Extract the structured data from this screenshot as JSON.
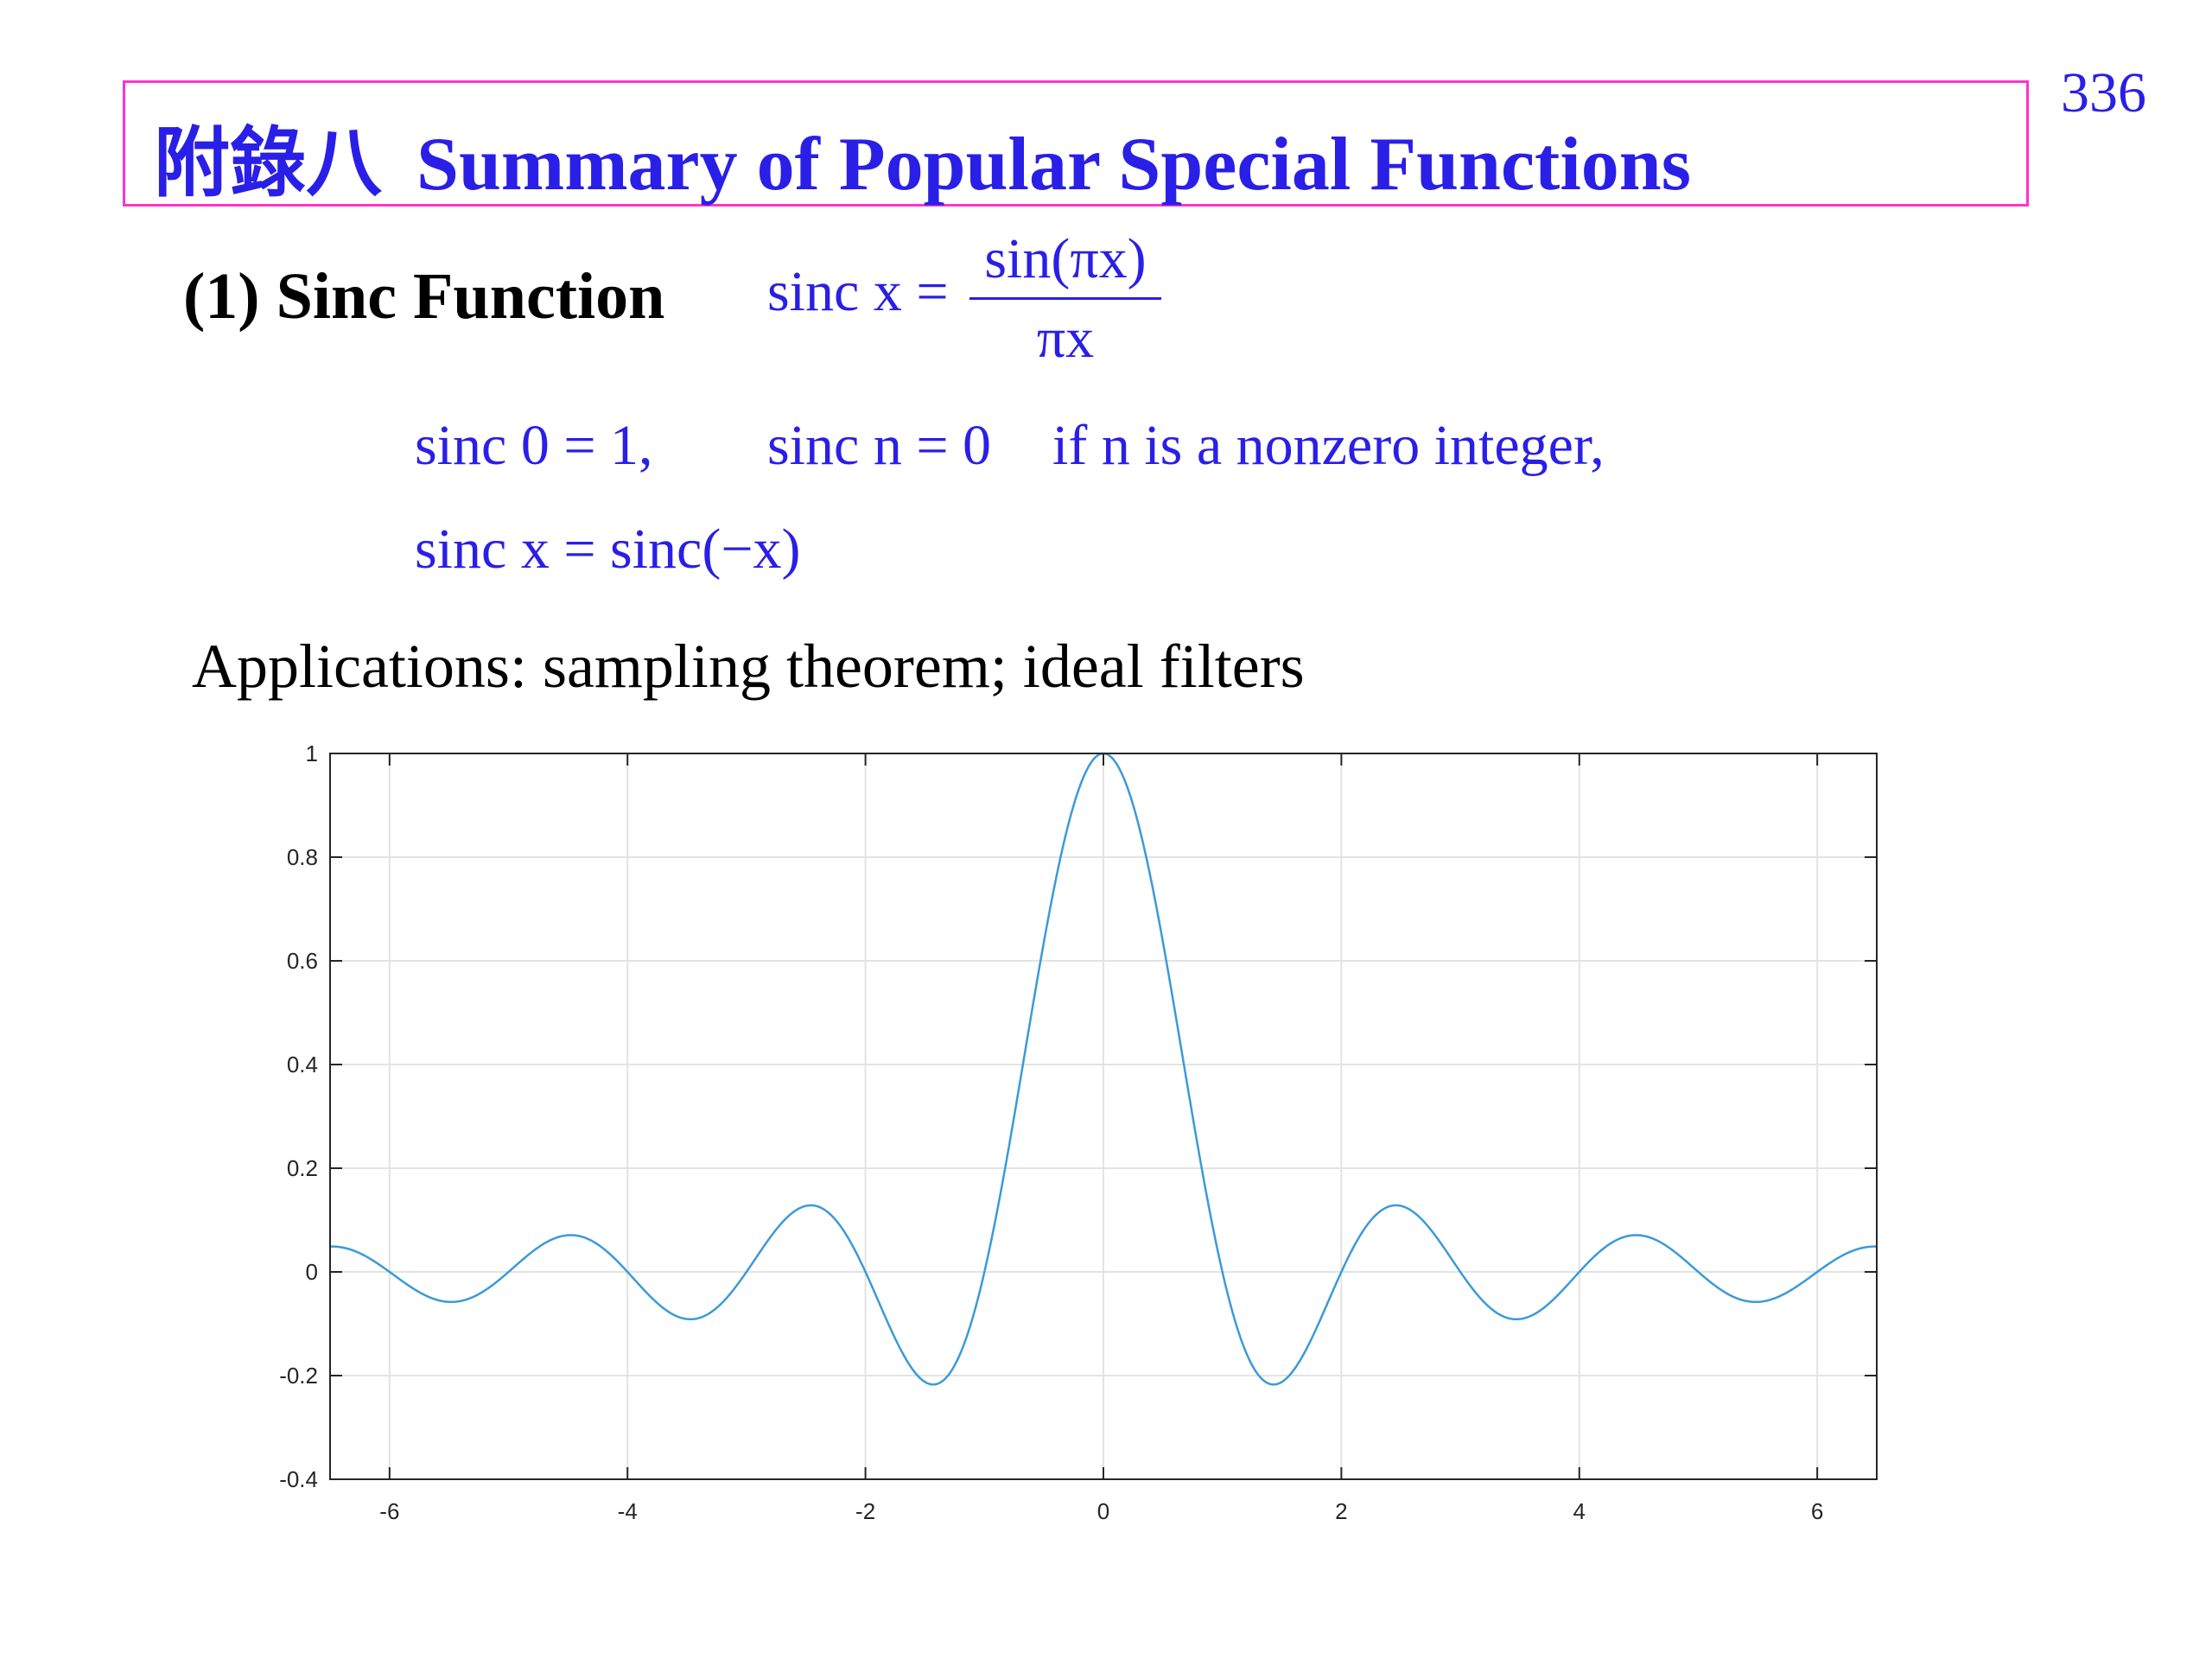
{
  "header": {
    "title_cjk": "附錄八",
    "title_en": "Summary of Popular Special Functions",
    "page_number": "336"
  },
  "section": {
    "heading": "(1) Sinc Function",
    "definition": {
      "lhs": "sinc x =",
      "numerator": "sin(πx)",
      "denominator": "πx"
    },
    "property_1a": "sinc 0 = 1,",
    "property_1b": "sinc n = 0",
    "property_1c": "if n is a nonzero integer,",
    "property_2": "sinc x = sinc(−x)",
    "applications": "Applications: sampling theorem; ideal filters"
  },
  "chart_data": {
    "type": "line",
    "function": "sinc(x) = sin(πx)/(πx)",
    "xlim": [
      -6.5,
      6.5
    ],
    "ylim": [
      -0.4,
      1
    ],
    "x_ticks": [
      -6,
      -4,
      -2,
      0,
      2,
      4,
      6
    ],
    "y_ticks": [
      -0.4,
      -0.2,
      0,
      0.2,
      0.4,
      0.6,
      0.8,
      1
    ],
    "x_tick_labels": [
      "-6",
      "-4",
      "-2",
      "0",
      "2",
      "4",
      "6"
    ],
    "y_tick_labels": [
      "-0.4",
      "-0.2",
      "0",
      "0.2",
      "0.4",
      "0.6",
      "0.8",
      "1"
    ],
    "grid": true,
    "line_color": "#3c9ad6",
    "key_points": [
      {
        "x": -6.5,
        "y": 0.049
      },
      {
        "x": -5.46,
        "y": -0.058
      },
      {
        "x": -4.48,
        "y": 0.071
      },
      {
        "x": -3.47,
        "y": -0.091
      },
      {
        "x": -2.46,
        "y": 0.128
      },
      {
        "x": -1.43,
        "y": -0.217
      },
      {
        "x": 0,
        "y": 1
      },
      {
        "x": 1.43,
        "y": -0.217
      },
      {
        "x": 2.46,
        "y": 0.128
      },
      {
        "x": 3.47,
        "y": -0.091
      },
      {
        "x": 4.48,
        "y": 0.071
      },
      {
        "x": 5.46,
        "y": -0.058
      },
      {
        "x": 6.5,
        "y": 0.049
      }
    ]
  }
}
